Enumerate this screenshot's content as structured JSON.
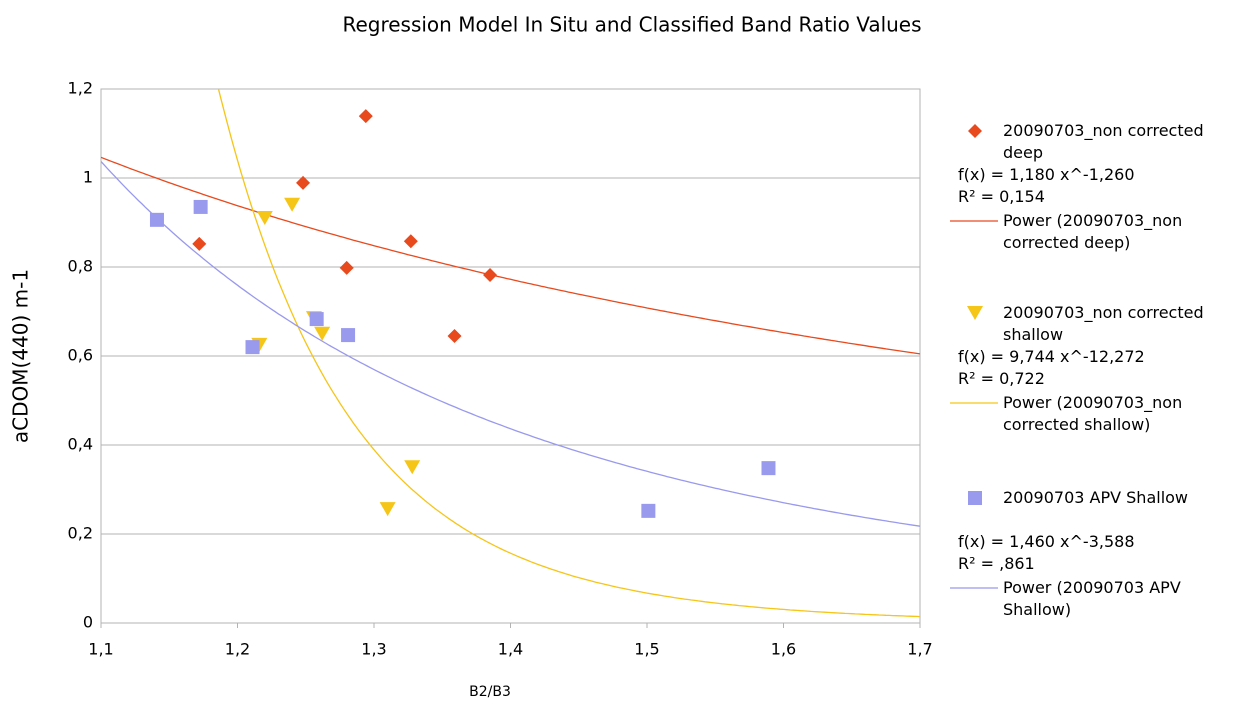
{
  "chart_data": {
    "type": "scatter",
    "title": "Regression Model In Situ and Classified Band Ratio Values",
    "x_label": "B2/B3",
    "y_label": "aCDOM(440) m-1",
    "xlim": [
      1.1,
      1.7
    ],
    "ylim": [
      0,
      1.2
    ],
    "xticks": [
      {
        "value": 1.1,
        "label": "1,1"
      },
      {
        "value": 1.2,
        "label": "1,2"
      },
      {
        "value": 1.3,
        "label": "1,3"
      },
      {
        "value": 1.4,
        "label": "1,4"
      },
      {
        "value": 1.5,
        "label": "1,5"
      },
      {
        "value": 1.6,
        "label": "1,6"
      },
      {
        "value": 1.7,
        "label": "1,7"
      }
    ],
    "yticks": [
      0,
      {
        "value": 0.2,
        "label": "0,2"
      },
      {
        "value": 0.4,
        "label": "0,4"
      },
      {
        "value": 0.6,
        "label": "0,6"
      },
      {
        "value": 0.8,
        "label": "0,8"
      },
      1,
      {
        "value": 1.2,
        "label": "1,2"
      }
    ],
    "grid": true,
    "series": [
      {
        "name": "20090703_non corrected deep",
        "color": "#e8491d",
        "marker": "diamond",
        "x": [
          1.172,
          1.294,
          1.248,
          1.327,
          1.28,
          1.385,
          1.359
        ],
        "values": [
          0.852,
          1.139,
          0.989,
          0.858,
          0.798,
          0.782,
          0.645
        ],
        "equation": "f(x) = 1,180 x^-1,260",
        "r2": "R² = 0,154",
        "trend_name": "Power (20090703_non corrected deep)",
        "trend": {
          "a": 1.18,
          "b": -1.26
        }
      },
      {
        "name": "20090703_non corrected shallow",
        "color": "#f5c518",
        "marker": "triangle",
        "x": [
          1.22,
          1.24,
          1.216,
          1.256,
          1.262,
          1.31,
          1.328
        ],
        "values": [
          0.91,
          0.94,
          0.625,
          0.685,
          0.65,
          0.256,
          0.35
        ],
        "equation": "f(x) = 9,744 x^-12,272",
        "r2": "R² = 0,722",
        "trend_name": "Power (20090703_non corrected shallow)",
        "trend": {
          "a": 9.744,
          "b": -12.272
        }
      },
      {
        "name": "20090703 APV Shallow",
        "color": "#9999ee",
        "marker": "square",
        "x": [
          1.141,
          1.173,
          1.211,
          1.258,
          1.281,
          1.501,
          1.589
        ],
        "values": [
          0.906,
          0.935,
          0.62,
          0.683,
          0.647,
          0.252,
          0.348
        ],
        "equation": "f(x) = 1,460 x^-3,588",
        "r2": "R² = ,861",
        "trend_name": "Power (20090703 APV Shallow)",
        "trend": {
          "a": 1.46,
          "b": -3.588
        }
      }
    ]
  }
}
